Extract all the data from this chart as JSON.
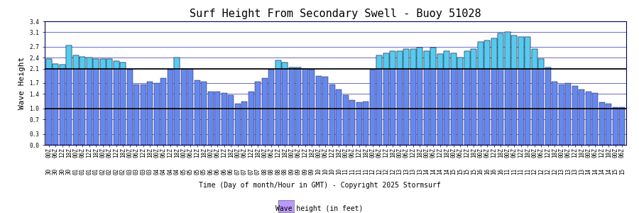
{
  "title": "Surf Height From Secondary Swell - Buoy 51028",
  "xlabel": "Time (Day of month/Hour in GMT) - Copyright 2025 Stormsurf",
  "ylabel": "Wave Height",
  "legend_label": "Wave height (in feet)",
  "ylim": [
    0,
    3.4
  ],
  "yticks": [
    0.0,
    0.3,
    0.7,
    1.0,
    1.4,
    1.7,
    2.1,
    2.4,
    2.7,
    3.1,
    3.4
  ],
  "hlines": [
    1.0,
    2.1
  ],
  "bar_color": "#6688ee",
  "bar_color_top": "#55ccee",
  "bar_edge": "#000033",
  "background_color": "#ffffff",
  "plot_bg": "#ffffff",
  "legend_color": "#bb99ff",
  "values": [
    2.37,
    2.23,
    2.2,
    2.73,
    2.47,
    2.43,
    2.4,
    2.37,
    2.37,
    2.37,
    2.3,
    2.27,
    2.07,
    1.67,
    1.67,
    1.73,
    1.7,
    1.83,
    2.07,
    2.4,
    2.1,
    2.1,
    1.77,
    1.73,
    1.47,
    1.47,
    1.43,
    1.37,
    1.13,
    1.2,
    1.47,
    1.73,
    1.83,
    2.07,
    2.33,
    2.27,
    2.13,
    2.13,
    2.1,
    2.07,
    1.9,
    1.87,
    1.67,
    1.53,
    1.37,
    1.23,
    1.17,
    1.2,
    2.07,
    2.47,
    2.53,
    2.57,
    2.57,
    2.63,
    2.63,
    2.67,
    2.57,
    2.67,
    2.5,
    2.57,
    2.53,
    2.4,
    2.57,
    2.63,
    2.83,
    2.87,
    2.93,
    3.07,
    3.1,
    3.0,
    2.97,
    2.97,
    2.63,
    2.37,
    2.13,
    1.73,
    1.67,
    1.7,
    1.63,
    1.53,
    1.47,
    1.43,
    1.17,
    1.13,
    1.03,
    1.03
  ],
  "days": [
    "30",
    "30",
    "30",
    "30",
    "01",
    "01",
    "01",
    "01",
    "02",
    "02",
    "02",
    "02",
    "03",
    "03",
    "03",
    "03",
    "04",
    "04",
    "04",
    "04",
    "05",
    "05",
    "05",
    "05",
    "06",
    "06",
    "06",
    "06",
    "07",
    "07",
    "07",
    "07",
    "08",
    "08",
    "08",
    "08",
    "09",
    "09",
    "09",
    "09",
    "10",
    "10",
    "10",
    "10",
    "11",
    "11",
    "11",
    "11",
    "12",
    "12",
    "12",
    "12",
    "13",
    "13",
    "13",
    "13",
    "14",
    "14",
    "14",
    "14",
    "15",
    "15",
    "15",
    "15",
    "16",
    "16",
    "16",
    "16",
    "11",
    "11",
    "11",
    "11",
    "12",
    "12",
    "12",
    "12",
    "13",
    "13",
    "13",
    "13",
    "14",
    "14",
    "14",
    "14",
    "15",
    "15"
  ],
  "hours": [
    "00Z",
    "06Z",
    "12Z",
    "18Z",
    "00Z",
    "06Z",
    "12Z",
    "18Z",
    "00Z",
    "06Z",
    "12Z",
    "18Z",
    "00Z",
    "06Z",
    "12Z",
    "18Z",
    "00Z",
    "06Z",
    "12Z",
    "18Z",
    "00Z",
    "06Z",
    "12Z",
    "18Z",
    "00Z",
    "06Z",
    "12Z",
    "18Z",
    "00Z",
    "06Z",
    "12Z",
    "18Z",
    "00Z",
    "06Z",
    "12Z",
    "18Z",
    "00Z",
    "06Z",
    "12Z",
    "18Z",
    "00Z",
    "06Z",
    "12Z",
    "18Z",
    "00Z",
    "06Z",
    "12Z",
    "18Z",
    "00Z",
    "06Z",
    "12Z",
    "18Z",
    "00Z",
    "06Z",
    "12Z",
    "18Z",
    "00Z",
    "06Z",
    "12Z",
    "18Z",
    "00Z",
    "06Z",
    "12Z",
    "18Z",
    "00Z",
    "06Z",
    "12Z",
    "18Z",
    "00Z",
    "06Z",
    "12Z",
    "18Z",
    "00Z",
    "06Z",
    "12Z",
    "18Z",
    "00Z",
    "06Z",
    "12Z",
    "18Z",
    "00Z",
    "06Z",
    "12Z",
    "18Z",
    "00Z",
    "06Z"
  ],
  "title_fontsize": 11,
  "tick_fontsize": 5.5,
  "label_fontsize": 8
}
